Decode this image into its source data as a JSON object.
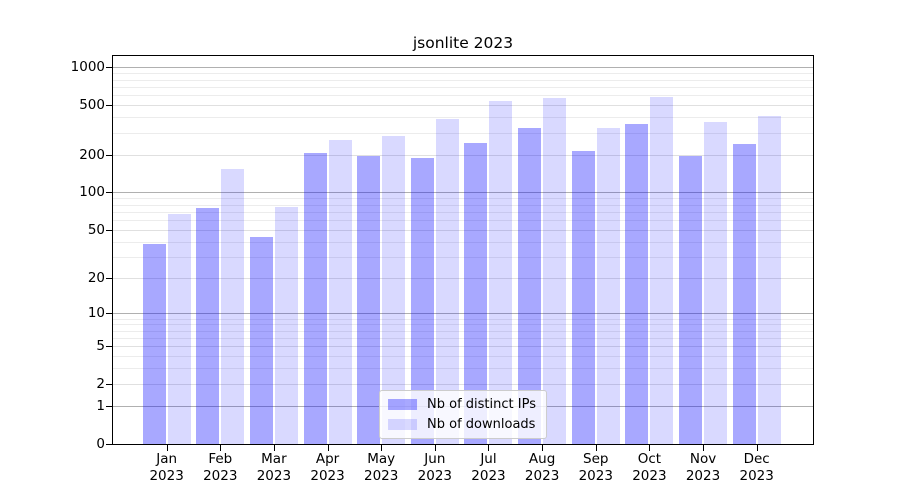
{
  "chart_data": {
    "type": "bar",
    "title": "jsonlite 2023",
    "scale": "log1p",
    "categories": [
      "Jan",
      "Feb",
      "Mar",
      "Apr",
      "May",
      "Jun",
      "Jul",
      "Aug",
      "Sep",
      "Oct",
      "Nov",
      "Dec"
    ],
    "year": "2023",
    "series": [
      {
        "name": "Nb of distinct IPs",
        "color": "rgba(0,0,255,0.34)",
        "values": [
          38,
          75,
          44,
          207,
          198,
          190,
          250,
          327,
          214,
          352,
          196,
          243
        ]
      },
      {
        "name": "Nb of downloads",
        "color": "rgba(0,0,255,0.15)",
        "values": [
          67,
          155,
          77,
          265,
          283,
          388,
          537,
          575,
          329,
          585,
          365,
          410
        ]
      }
    ],
    "y_major_ticks": [
      0,
      1,
      2,
      5,
      10,
      20,
      50,
      100,
      200,
      500,
      1000
    ],
    "y_minor_ticks": [
      3,
      4,
      6,
      7,
      8,
      9,
      30,
      40,
      60,
      70,
      80,
      90,
      300,
      400,
      600,
      700,
      800,
      900
    ],
    "ylim": [
      0,
      1235
    ],
    "grid": true,
    "legend_position": "inside-bottom-center",
    "colors": {
      "bar_dark": "rgba(0,0,255,0.34)",
      "bar_light": "rgba(0,0,255,0.15)",
      "grid_power10": "#b0b0b0",
      "grid_major": "#e0e0e0",
      "grid_minor": "#ececec",
      "axis": "#000000",
      "legend_border": "#cccccc"
    }
  }
}
